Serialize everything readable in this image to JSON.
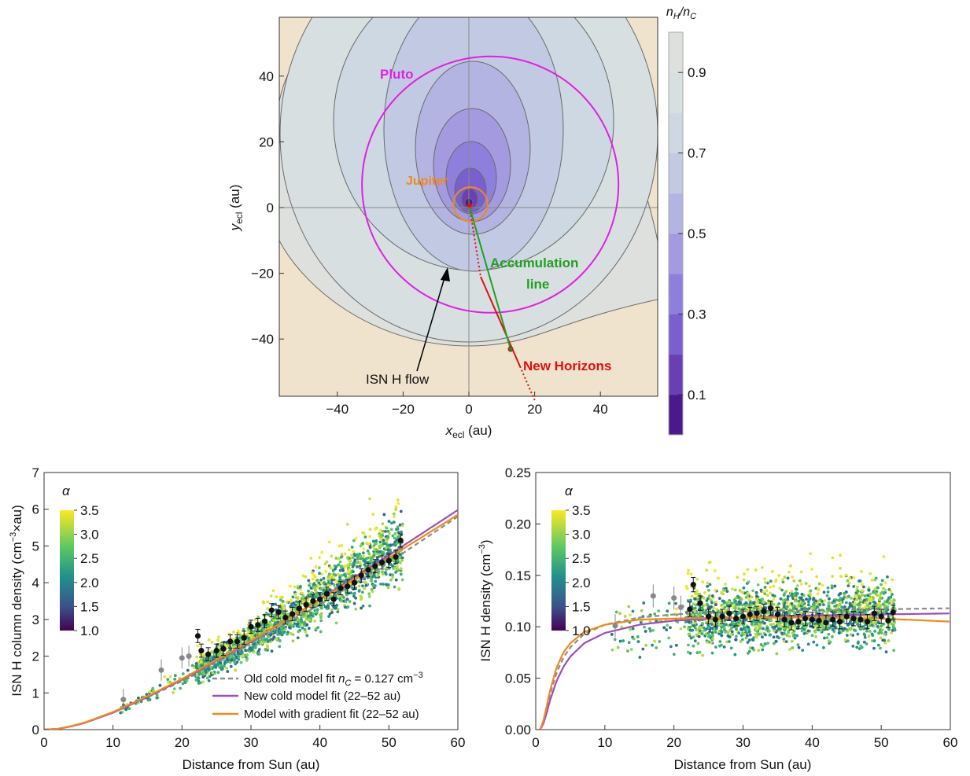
{
  "chart_data": [
    {
      "type": "contour",
      "xlabel": "x",
      "xlabel_sub": "ecl",
      "xlabel_unit": " (au)",
      "ylabel": "y",
      "ylabel_sub": "ecl",
      "ylabel_unit": " (au)",
      "xlim": [
        -58,
        58
      ],
      "ylim": [
        -57,
        58
      ],
      "xticks": [
        -40,
        -20,
        0,
        20,
        40
      ],
      "yticks": [
        -40,
        -20,
        0,
        20,
        40
      ],
      "colorbar": {
        "title_n": "n",
        "title_sub1": "H",
        "title_slash": "/n",
        "title_sub2": "C",
        "range": [
          0,
          1
        ],
        "ticks": [
          0.1,
          0.3,
          0.5,
          0.7,
          0.9
        ],
        "levels": [
          0,
          0.1,
          0.2,
          0.3,
          0.4,
          0.5,
          0.6,
          0.7,
          0.8,
          0.9,
          1.0
        ],
        "colors": [
          "#4b1a8a",
          "#6a3fb4",
          "#7a5fcf",
          "#8f7fdc",
          "#a39ae0",
          "#b3b4e2",
          "#c2c9e2",
          "#cdd8e2",
          "#d7dfe1",
          "#dde0dd",
          "#efe3cd"
        ]
      },
      "annotations": {
        "pluto": "Pluto",
        "jupiter": "Jupiter",
        "accumulation1": "Accumulation",
        "accumulation2": "line",
        "new_horizons": "New Horizons",
        "flow": "ISN H flow"
      },
      "orbits": {
        "pluto_radius": 39,
        "pluto_center": [
          6.5,
          7
        ],
        "jupiter_radius": 5.2
      },
      "new_horizons_point": [
        12.4,
        -43
      ],
      "colors": {
        "pluto": "#e020e0",
        "jupiter": "#f08a1c",
        "accumulation": "#20a020",
        "new_horizons": "#e01010"
      }
    },
    {
      "type": "scatter",
      "xlabel": "Distance from Sun (au)",
      "ylabel": "ISN H column density (cm",
      "ylabel_sup": "−3",
      "ylabel_tail": "×au)",
      "xlim": [
        0,
        60
      ],
      "ylim": [
        0,
        7
      ],
      "xticks": [
        0,
        10,
        20,
        30,
        40,
        50,
        60
      ],
      "yticks": [
        0,
        1,
        2,
        3,
        4,
        5,
        6,
        7
      ],
      "colorbar": {
        "title": "α",
        "ticks": [
          "1.0",
          "1.5",
          "2.0",
          "2.5",
          "3.0",
          "3.5"
        ]
      },
      "legend": [
        {
          "text": "Old cold model fit ",
          "italic": "n",
          "sub": "C",
          "tail": " = 0.127 cm",
          "sup": "−3",
          "color": "#8a8a8a",
          "dash": true
        },
        {
          "text": "New cold model fit (22–52 au)",
          "color": "#9b4fb8"
        },
        {
          "text": "Model with gradient fit (22–52 au)",
          "color": "#f08a1c"
        }
      ],
      "curves": {
        "old_cold": {
          "x": [
            0,
            2,
            4,
            6,
            10,
            15,
            20,
            30,
            40,
            50,
            60
          ],
          "y": [
            0,
            0.02,
            0.09,
            0.19,
            0.47,
            0.88,
            1.32,
            2.35,
            3.4,
            4.55,
            5.8
          ]
        },
        "new_cold": {
          "x": [
            0,
            2,
            4,
            6,
            10,
            15,
            20,
            30,
            40,
            50,
            60
          ],
          "y": [
            0,
            0.02,
            0.09,
            0.19,
            0.46,
            0.89,
            1.36,
            2.4,
            3.55,
            4.75,
            5.98
          ]
        },
        "gradient": {
          "x": [
            0,
            2,
            4,
            6,
            10,
            15,
            20,
            30,
            40,
            50,
            60
          ],
          "y": [
            0,
            0.02,
            0.1,
            0.2,
            0.48,
            0.91,
            1.38,
            2.42,
            3.53,
            4.68,
            5.85
          ]
        }
      },
      "binned_black": {
        "x": [
          22.3,
          22.8,
          23.8,
          25,
          26,
          27,
          28,
          29,
          30,
          31,
          32,
          33,
          34,
          35,
          36,
          37,
          38,
          39,
          40,
          41,
          42,
          43,
          44,
          45,
          46,
          47,
          48,
          49,
          50,
          51,
          51.7
        ],
        "y": [
          2.55,
          2.15,
          2.05,
          2.15,
          2.2,
          2.4,
          2.4,
          2.5,
          2.8,
          2.85,
          2.95,
          3.25,
          3.2,
          3.05,
          3.15,
          3.3,
          3.4,
          3.5,
          3.55,
          3.7,
          3.55,
          3.85,
          3.9,
          4.0,
          4.2,
          4.35,
          4.45,
          4.55,
          4.6,
          4.7,
          5.15
        ]
      },
      "binned_gray": {
        "x": [
          11.5,
          17,
          20,
          21
        ],
        "y": [
          0.82,
          1.62,
          1.95,
          2.0
        ]
      }
    },
    {
      "type": "scatter",
      "xlabel": "Distance from Sun (au)",
      "ylabel": "ISN H density (cm",
      "ylabel_sup": "−3",
      "ylabel_tail": ")",
      "xlim": [
        0,
        60
      ],
      "ylim": [
        0,
        0.25
      ],
      "xticks": [
        0,
        10,
        20,
        30,
        40,
        50,
        60
      ],
      "yticks": [
        "0.00",
        "0.05",
        "0.10",
        "0.15",
        "0.20",
        "0.25"
      ],
      "colorbar": {
        "title": "α",
        "ticks": [
          "1.0",
          "1.5",
          "2.0",
          "2.5",
          "3.0",
          "3.5"
        ]
      },
      "curves": {
        "old_cold": {
          "x": [
            0.6,
            1,
            1.5,
            2,
            3,
            4,
            5,
            7,
            10,
            15,
            20,
            30,
            40,
            50,
            60
          ],
          "y": [
            0,
            0.005,
            0.018,
            0.033,
            0.055,
            0.07,
            0.08,
            0.093,
            0.102,
            0.109,
            0.112,
            0.115,
            0.116,
            0.117,
            0.118
          ]
        },
        "new_cold": {
          "x": [
            0.6,
            1,
            1.5,
            2,
            3,
            4,
            5,
            7,
            10,
            15,
            20,
            30,
            40,
            50,
            60
          ],
          "y": [
            0,
            0.004,
            0.014,
            0.027,
            0.047,
            0.061,
            0.071,
            0.084,
            0.094,
            0.102,
            0.106,
            0.109,
            0.111,
            0.112,
            0.113
          ]
        },
        "gradient": {
          "x": [
            0.6,
            1,
            1.5,
            2,
            3,
            4,
            5,
            7,
            10,
            15,
            20,
            30,
            40,
            50,
            60
          ],
          "y": [
            0,
            0.006,
            0.02,
            0.036,
            0.06,
            0.075,
            0.084,
            0.095,
            0.102,
            0.107,
            0.108,
            0.109,
            0.109,
            0.108,
            0.105
          ]
        }
      },
      "binned_black": {
        "x": [
          22.3,
          22.8,
          23.8,
          25,
          26,
          27,
          28,
          29,
          30,
          31,
          32,
          33,
          34,
          35,
          36,
          37,
          38,
          39,
          40,
          41,
          42,
          43,
          44,
          45,
          46,
          47,
          48,
          49,
          50,
          51,
          51.7
        ],
        "y": [
          0.117,
          0.141,
          0.123,
          0.11,
          0.107,
          0.11,
          0.113,
          0.108,
          0.11,
          0.112,
          0.113,
          0.115,
          0.118,
          0.112,
          0.107,
          0.104,
          0.105,
          0.108,
          0.107,
          0.106,
          0.104,
          0.107,
          0.105,
          0.11,
          0.108,
          0.107,
          0.105,
          0.113,
          0.11,
          0.106,
          0.114
        ]
      },
      "binned_gray": {
        "x": [
          11.5,
          17,
          20,
          21
        ],
        "y": [
          0.101,
          0.13,
          0.128,
          0.119
        ]
      }
    }
  ]
}
